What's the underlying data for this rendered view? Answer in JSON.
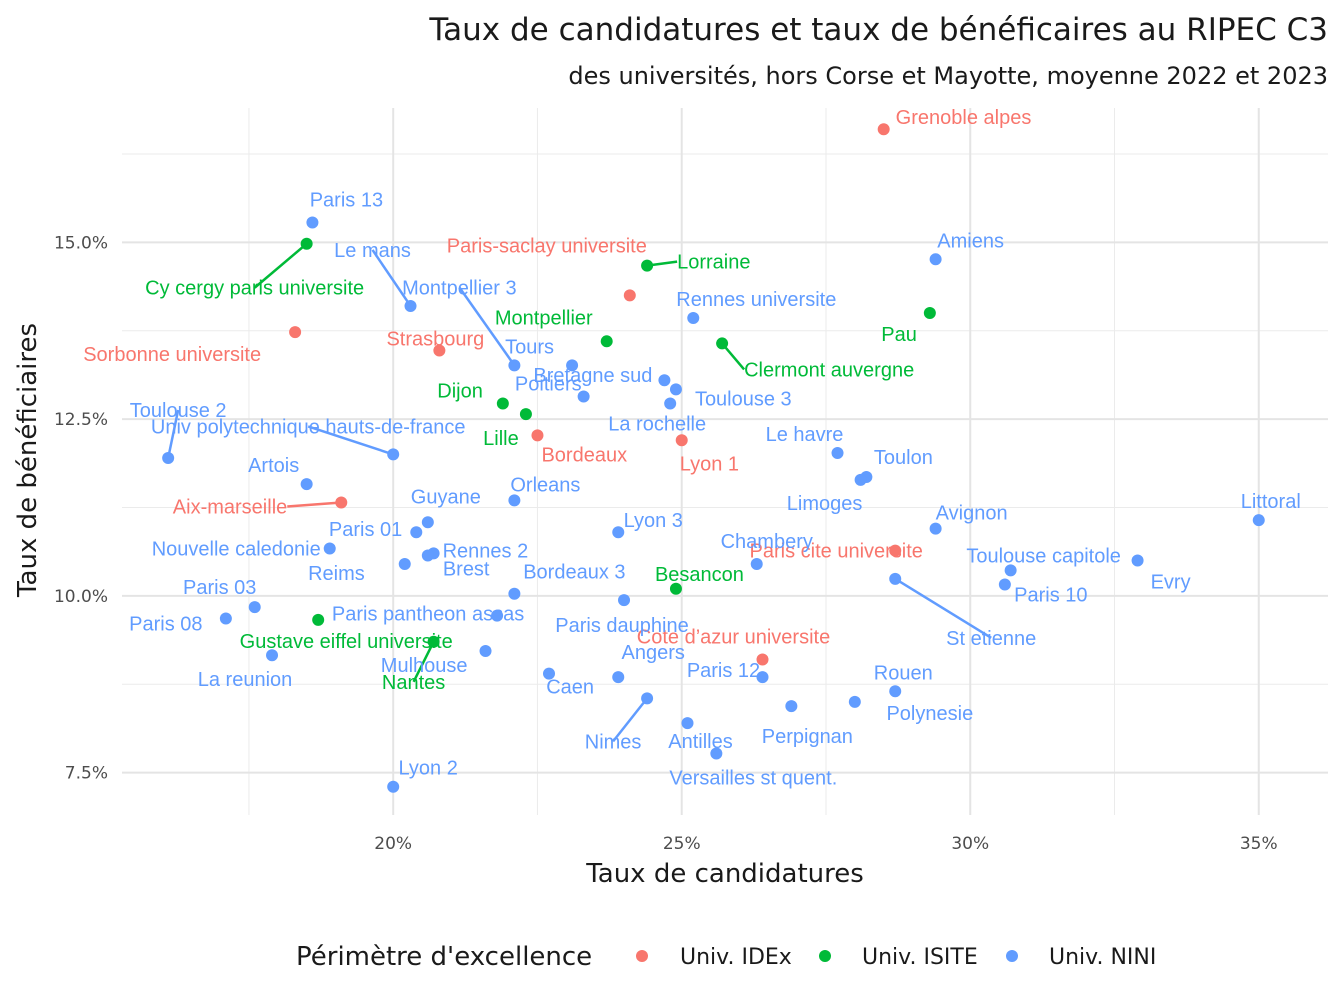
{
  "chart_data": {
    "type": "scatter",
    "title": "Taux de candidatures et taux de bénéficaires au RIPEC C3",
    "subtitle": "des universités, hors Corse et Mayotte, moyenne 2022 et 2023",
    "xlabel": "Taux de candidatures",
    "ylabel": "Taux de bénéficiaires",
    "xlim": [
      15.3,
      36.2
    ],
    "ylim": [
      6.9,
      16.9
    ],
    "x_ticks": [
      20,
      25,
      30,
      35
    ],
    "x_tick_labels": [
      "20%",
      "25%",
      "30%",
      "35%"
    ],
    "y_ticks": [
      7.5,
      10,
      12.5,
      15
    ],
    "y_tick_labels": [
      "7.5%",
      "10.0%",
      "12.5%",
      "15.0%"
    ],
    "grid": true,
    "legend": {
      "title": "Périmètre d'excellence",
      "position": "bottom",
      "entries": [
        {
          "key": "idex",
          "label": "Univ. IDEx",
          "color": "#F8766D"
        },
        {
          "key": "isite",
          "label": "Univ. ISITE",
          "color": "#00BA38"
        },
        {
          "key": "nini",
          "label": "Univ. NINI",
          "color": "#619CFF"
        }
      ]
    },
    "series": [
      {
        "name": "Univ. IDEx",
        "color": "#F8766D",
        "points": [
          {
            "label": "Grenoble alpes",
            "x": 28.5,
            "y": 16.6
          },
          {
            "label": "Paris-saclay universite",
            "x": 24.1,
            "y": 14.25
          },
          {
            "label": "Sorbonne universite",
            "x": 18.3,
            "y": 13.73
          },
          {
            "label": "Strasbourg",
            "x": 20.8,
            "y": 13.47
          },
          {
            "label": "Bordeaux",
            "x": 22.5,
            "y": 12.27
          },
          {
            "label": "Lyon 1",
            "x": 25.0,
            "y": 12.2
          },
          {
            "label": "Aix-marseille",
            "x": 19.1,
            "y": 11.32
          },
          {
            "label": "Paris cite universite",
            "x": 28.7,
            "y": 10.64
          },
          {
            "label": "Cote d’azur universite",
            "x": 26.4,
            "y": 9.1
          }
        ]
      },
      {
        "name": "Univ. ISITE",
        "color": "#00BA38",
        "points": [
          {
            "label": "Cy cergy paris universite",
            "x": 18.5,
            "y": 14.98
          },
          {
            "label": "Lorraine",
            "x": 24.4,
            "y": 14.67
          },
          {
            "label": "Pau",
            "x": 29.3,
            "y": 14.0
          },
          {
            "label": "Montpellier",
            "x": 23.7,
            "y": 13.6
          },
          {
            "label": "Clermont auvergne",
            "x": 25.7,
            "y": 13.57
          },
          {
            "label": "Dijon",
            "x": 21.9,
            "y": 12.72
          },
          {
            "label": "Lille",
            "x": 22.3,
            "y": 12.57
          },
          {
            "label": "Besancon",
            "x": 24.9,
            "y": 10.1
          },
          {
            "label": "Gustave eiffel universite",
            "x": 18.7,
            "y": 9.66
          },
          {
            "label": "Nantes",
            "x": 20.7,
            "y": 9.35
          }
        ]
      },
      {
        "name": "Univ. NINI",
        "color": "#619CFF",
        "points": [
          {
            "label": "Paris 13",
            "x": 18.6,
            "y": 15.28
          },
          {
            "label": "Amiens",
            "x": 29.4,
            "y": 14.76
          },
          {
            "label": "Le mans",
            "x": 20.3,
            "y": 14.1
          },
          {
            "label": "Rennes universite",
            "x": 25.2,
            "y": 13.93
          },
          {
            "label": "Montpellier 3",
            "x": 22.1,
            "y": 13.26
          },
          {
            "label": "Tours",
            "x": 23.1,
            "y": 13.26
          },
          {
            "label": "Bretagne sud",
            "x": 24.7,
            "y": 13.05
          },
          {
            "label": "Toulouse 3",
            "x": 24.9,
            "y": 12.92
          },
          {
            "label": "Poitiers",
            "x": 23.3,
            "y": 12.82
          },
          {
            "label": "La rochelle",
            "x": 24.8,
            "y": 12.72
          },
          {
            "label": "Univ polytechnique hauts-de-france",
            "x": 20.0,
            "y": 12.0
          },
          {
            "label": "Toulouse 2",
            "x": 16.1,
            "y": 11.95
          },
          {
            "label": "Le havre",
            "x": 27.7,
            "y": 12.02
          },
          {
            "label": "Toulon",
            "x": 28.2,
            "y": 11.68
          },
          {
            "label": "Limoges",
            "x": 28.1,
            "y": 11.64
          },
          {
            "label": "Artois",
            "x": 18.5,
            "y": 11.58
          },
          {
            "label": "Orleans",
            "x": 22.1,
            "y": 11.35
          },
          {
            "label": "Littoral",
            "x": 35.0,
            "y": 11.07
          },
          {
            "label": "Guyane",
            "x": 20.6,
            "y": 11.04
          },
          {
            "label": "Avignon",
            "x": 29.4,
            "y": 10.95
          },
          {
            "label": "Paris 01",
            "x": 20.4,
            "y": 10.9
          },
          {
            "label": "Lyon 3",
            "x": 23.9,
            "y": 10.9
          },
          {
            "label": "Nouvelle caledonie",
            "x": 18.9,
            "y": 10.67
          },
          {
            "label": "Rennes 2",
            "x": 20.7,
            "y": 10.6
          },
          {
            "label": "Brest",
            "x": 20.6,
            "y": 10.57
          },
          {
            "label": "Evry",
            "x": 32.9,
            "y": 10.5
          },
          {
            "label": "Chambery",
            "x": 26.3,
            "y": 10.45
          },
          {
            "label": "Reims",
            "x": 20.2,
            "y": 10.45
          },
          {
            "label": "Toulouse capitole",
            "x": 30.7,
            "y": 10.36
          },
          {
            "label": "St etienne",
            "x": 28.7,
            "y": 10.24
          },
          {
            "label": "Paris 10",
            "x": 30.6,
            "y": 10.16
          },
          {
            "label": "Bordeaux 3",
            "x": 22.1,
            "y": 10.03
          },
          {
            "label": "Paris dauphine",
            "x": 24.0,
            "y": 9.94
          },
          {
            "label": "Paris 03",
            "x": 17.6,
            "y": 9.84
          },
          {
            "label": "Paris pantheon assas",
            "x": 21.8,
            "y": 9.72
          },
          {
            "label": "Paris 08",
            "x": 17.1,
            "y": 9.68
          },
          {
            "label": "Mulhouse",
            "x": 21.6,
            "y": 9.22
          },
          {
            "label": "La reunion",
            "x": 17.9,
            "y": 9.16
          },
          {
            "label": "Caen",
            "x": 22.7,
            "y": 8.9
          },
          {
            "label": "Paris 12",
            "x": 26.4,
            "y": 8.85
          },
          {
            "label": "Angers",
            "x": 23.9,
            "y": 8.85
          },
          {
            "label": "Rouen",
            "x": 28.7,
            "y": 8.65
          },
          {
            "label": "Nimes",
            "x": 24.4,
            "y": 8.55
          },
          {
            "label": "Polynesie",
            "x": 28.0,
            "y": 8.5
          },
          {
            "label": "Perpignan",
            "x": 26.9,
            "y": 8.44
          },
          {
            "label": "Antilles",
            "x": 25.1,
            "y": 8.2
          },
          {
            "label": "Versailles st quent.",
            "x": 25.6,
            "y": 7.77
          },
          {
            "label": "Lyon 2",
            "x": 20.0,
            "y": 7.3
          }
        ]
      }
    ]
  }
}
